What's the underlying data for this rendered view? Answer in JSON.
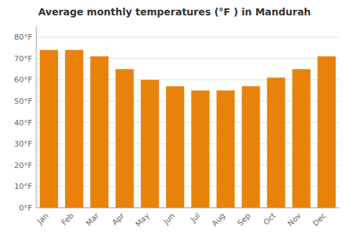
{
  "chart_data": {
    "type": "bar",
    "title": "Average monthly temperatures (°F ) in Mandurah",
    "categories": [
      "Jan",
      "Feb",
      "Mar",
      "Apr",
      "May",
      "Jun",
      "Jul",
      "Aug",
      "Sep",
      "Oct",
      "Nov",
      "Dec"
    ],
    "values": [
      74,
      74,
      71,
      65,
      60,
      57,
      55,
      55,
      57,
      61,
      65,
      71
    ],
    "color": "#E8820A",
    "ylim": [
      0,
      85
    ],
    "yticks": [
      {
        "value": 0,
        "label": "0°F"
      },
      {
        "value": 10,
        "label": "10°F"
      },
      {
        "value": 20,
        "label": "20°F"
      },
      {
        "value": 30,
        "label": "30°F"
      },
      {
        "value": 40,
        "label": "40°F"
      },
      {
        "value": 50,
        "label": "50°F"
      },
      {
        "value": 60,
        "label": "60°F"
      },
      {
        "value": 70,
        "label": "70°F"
      },
      {
        "value": 80,
        "label": "80°F"
      }
    ],
    "grid": true
  }
}
